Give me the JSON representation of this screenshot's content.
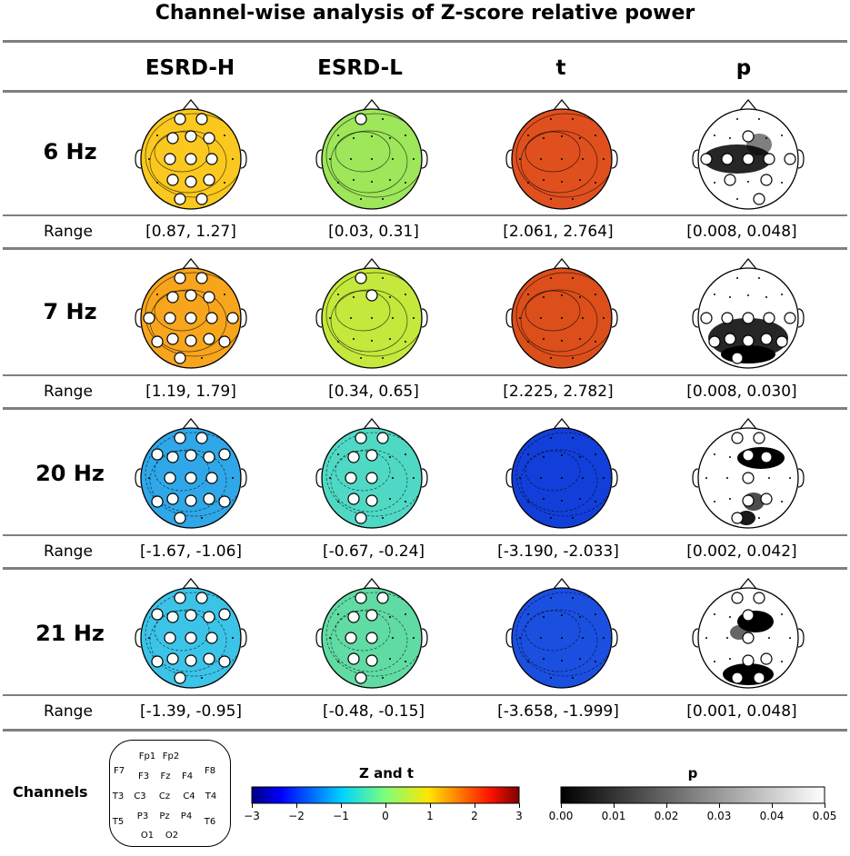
{
  "title": "Channel-wise analysis of Z-score relative power",
  "columns": [
    "ESRD-H",
    "ESRD-L",
    "t",
    "p"
  ],
  "range_label": "Range",
  "rows": [
    {
      "label": "6 Hz",
      "ranges": [
        "[0.87, 1.27]",
        "[0.03, 0.31]",
        "[2.061, 2.764]",
        "[0.008, 0.048]"
      ],
      "fills": [
        "#fac81e",
        "#9ee65a",
        "#e0501e",
        "p"
      ]
    },
    {
      "label": "7 Hz",
      "ranges": [
        "[1.19, 1.79]",
        "[0.34, 0.65]",
        "[2.225, 2.782]",
        "[0.008, 0.030]"
      ],
      "fills": [
        "#f7a51c",
        "#c4e83c",
        "#dc4f1b",
        "p"
      ]
    },
    {
      "label": "20 Hz",
      "ranges": [
        "[-1.67, -1.06]",
        "[-0.67, -0.24]",
        "[-3.190, -2.033]",
        "[0.002, 0.042]"
      ],
      "fills": [
        "#2fa7e8",
        "#4fd9c5",
        "#123fd9",
        "p"
      ]
    },
    {
      "label": "21 Hz",
      "ranges": [
        "[-1.39, -0.95]",
        "[-0.48, -0.15]",
        "[-3.658, -1.999]",
        "[0.001, 0.048]"
      ],
      "fills": [
        "#3cc3e8",
        "#61dba4",
        "#1a4fe0",
        "p"
      ]
    }
  ],
  "legend": {
    "channels_label": "Channels",
    "channels": [
      "Fp1",
      "Fp2",
      "F7",
      "F3",
      "Fz",
      "F4",
      "F8",
      "T3",
      "C3",
      "Cz",
      "C4",
      "T4",
      "T5",
      "P3",
      "Pz",
      "P4",
      "T6",
      "O1",
      "O2"
    ],
    "zt_title": "Z and t",
    "zt_ticks": [
      "−3",
      "−2",
      "−1",
      "0",
      "1",
      "2",
      "3"
    ],
    "p_title": "p",
    "p_ticks": [
      "0.00",
      "0.01",
      "0.02",
      "0.03",
      "0.04",
      "0.05"
    ]
  }
}
